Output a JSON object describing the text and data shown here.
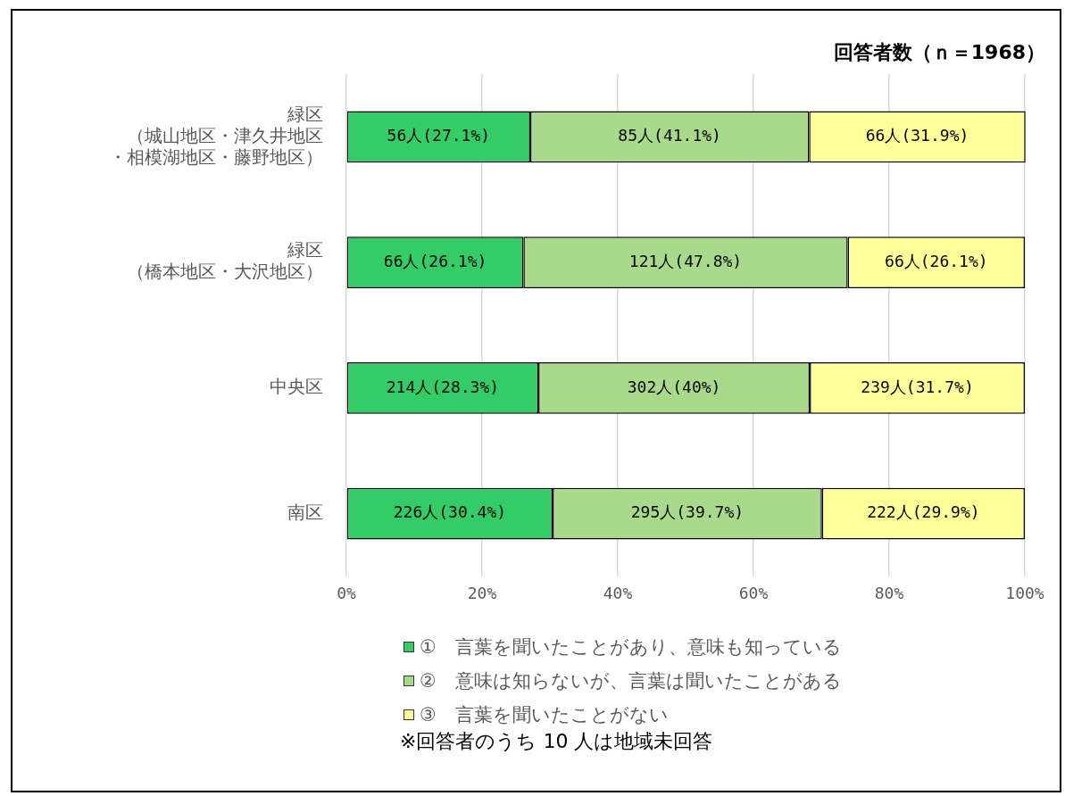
{
  "chart_data": {
    "type": "bar",
    "orientation": "horizontal",
    "stacked": true,
    "title": "回答者数（ｎ＝1968）",
    "categories": [
      "緑区（城山地区・津久井地区・相模湖地区・藤野地区）",
      "緑区（橋本地区・大沢地区）",
      "中央区",
      "南区"
    ],
    "series": [
      {
        "name": "①　言葉を聞いたことがあり、意味も知っている",
        "color": "#33cc66",
        "values": [
          27.1,
          26.1,
          28.3,
          30.4
        ],
        "value_labels": [
          "56人(27.1%)",
          "66人(26.1%)",
          "214人(28.3%)",
          "226人(30.4%)"
        ]
      },
      {
        "name": "②　意味は知らないが、言葉は聞いたことがある",
        "color": "#a9d98b",
        "values": [
          41.1,
          47.8,
          40,
          39.7
        ],
        "value_labels": [
          "85人(41.1%)",
          "121人(47.8%)",
          "302人(40%)",
          "295人(39.7%)"
        ]
      },
      {
        "name": "③　言葉を聞いたことがない",
        "color": "#ffff99",
        "values": [
          31.9,
          26.1,
          31.7,
          29.9
        ],
        "value_labels": [
          "66人(31.9%)",
          "66人(26.1%)",
          "239人(31.7%)",
          "222人(29.9%)"
        ]
      }
    ],
    "xlim": [
      0,
      100
    ],
    "xticks": [
      {
        "value": 0,
        "label": "0%"
      },
      {
        "value": 20,
        "label": "20%"
      },
      {
        "value": 40,
        "label": "40%"
      },
      {
        "value": 60,
        "label": "60%"
      },
      {
        "value": 80,
        "label": "80%"
      },
      {
        "value": 100,
        "label": "100%"
      }
    ],
    "grid": "x",
    "legend": "bottom",
    "annotations": [
      "※回答者のうち 10 人は地域未回答"
    ]
  }
}
